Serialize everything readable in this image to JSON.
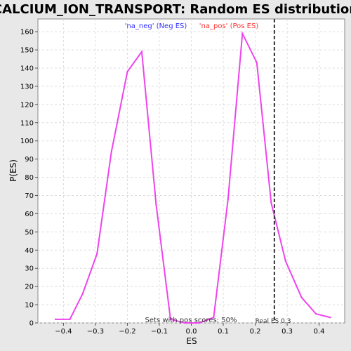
{
  "chart_data": {
    "type": "line",
    "title": "CALCIUM_ION_TRANSPORT: Random ES distribution",
    "xlabel": "ES",
    "ylabel": "P(ES)",
    "xlim": [
      -0.48,
      0.48
    ],
    "ylim": [
      0,
      167
    ],
    "xticks": [
      -0.4,
      -0.3,
      -0.2,
      -0.1,
      0.0,
      0.1,
      0.2,
      0.3,
      0.4
    ],
    "xtick_labels": [
      "−0.4",
      "−0.3",
      "−0.2",
      "−0.1",
      "0.0",
      "0.1",
      "0.2",
      "0.3",
      "0.4"
    ],
    "yticks": [
      0,
      10,
      20,
      30,
      40,
      50,
      60,
      70,
      80,
      90,
      100,
      110,
      120,
      130,
      140,
      150,
      160
    ],
    "grid": true,
    "legend": [
      {
        "label": "'na_neg' (Neg ES)",
        "color": "#3333ff"
      },
      {
        "label": "'na_pos' (Pos ES)",
        "color": "#ff3333"
      }
    ],
    "line_color": "#ee44ee",
    "series": [
      {
        "x": [
          -0.425,
          -0.38,
          -0.34,
          -0.295,
          -0.25,
          -0.2,
          -0.155,
          -0.11,
          -0.065,
          -0.02,
          0.025,
          0.07,
          0.115,
          0.16,
          0.205,
          0.25,
          0.295,
          0.345,
          0.39,
          0.435
        ],
        "y": [
          2,
          2,
          16,
          38,
          94,
          138,
          149,
          65,
          2,
          0,
          0,
          3,
          68,
          159,
          143,
          66,
          34,
          14,
          5,
          3
        ]
      }
    ],
    "vline": {
      "x": 0.26,
      "label": "Real ES 0.3",
      "style": "dashed",
      "color": "#333333"
    },
    "annotation": "Sets with pos scores: 50%"
  }
}
